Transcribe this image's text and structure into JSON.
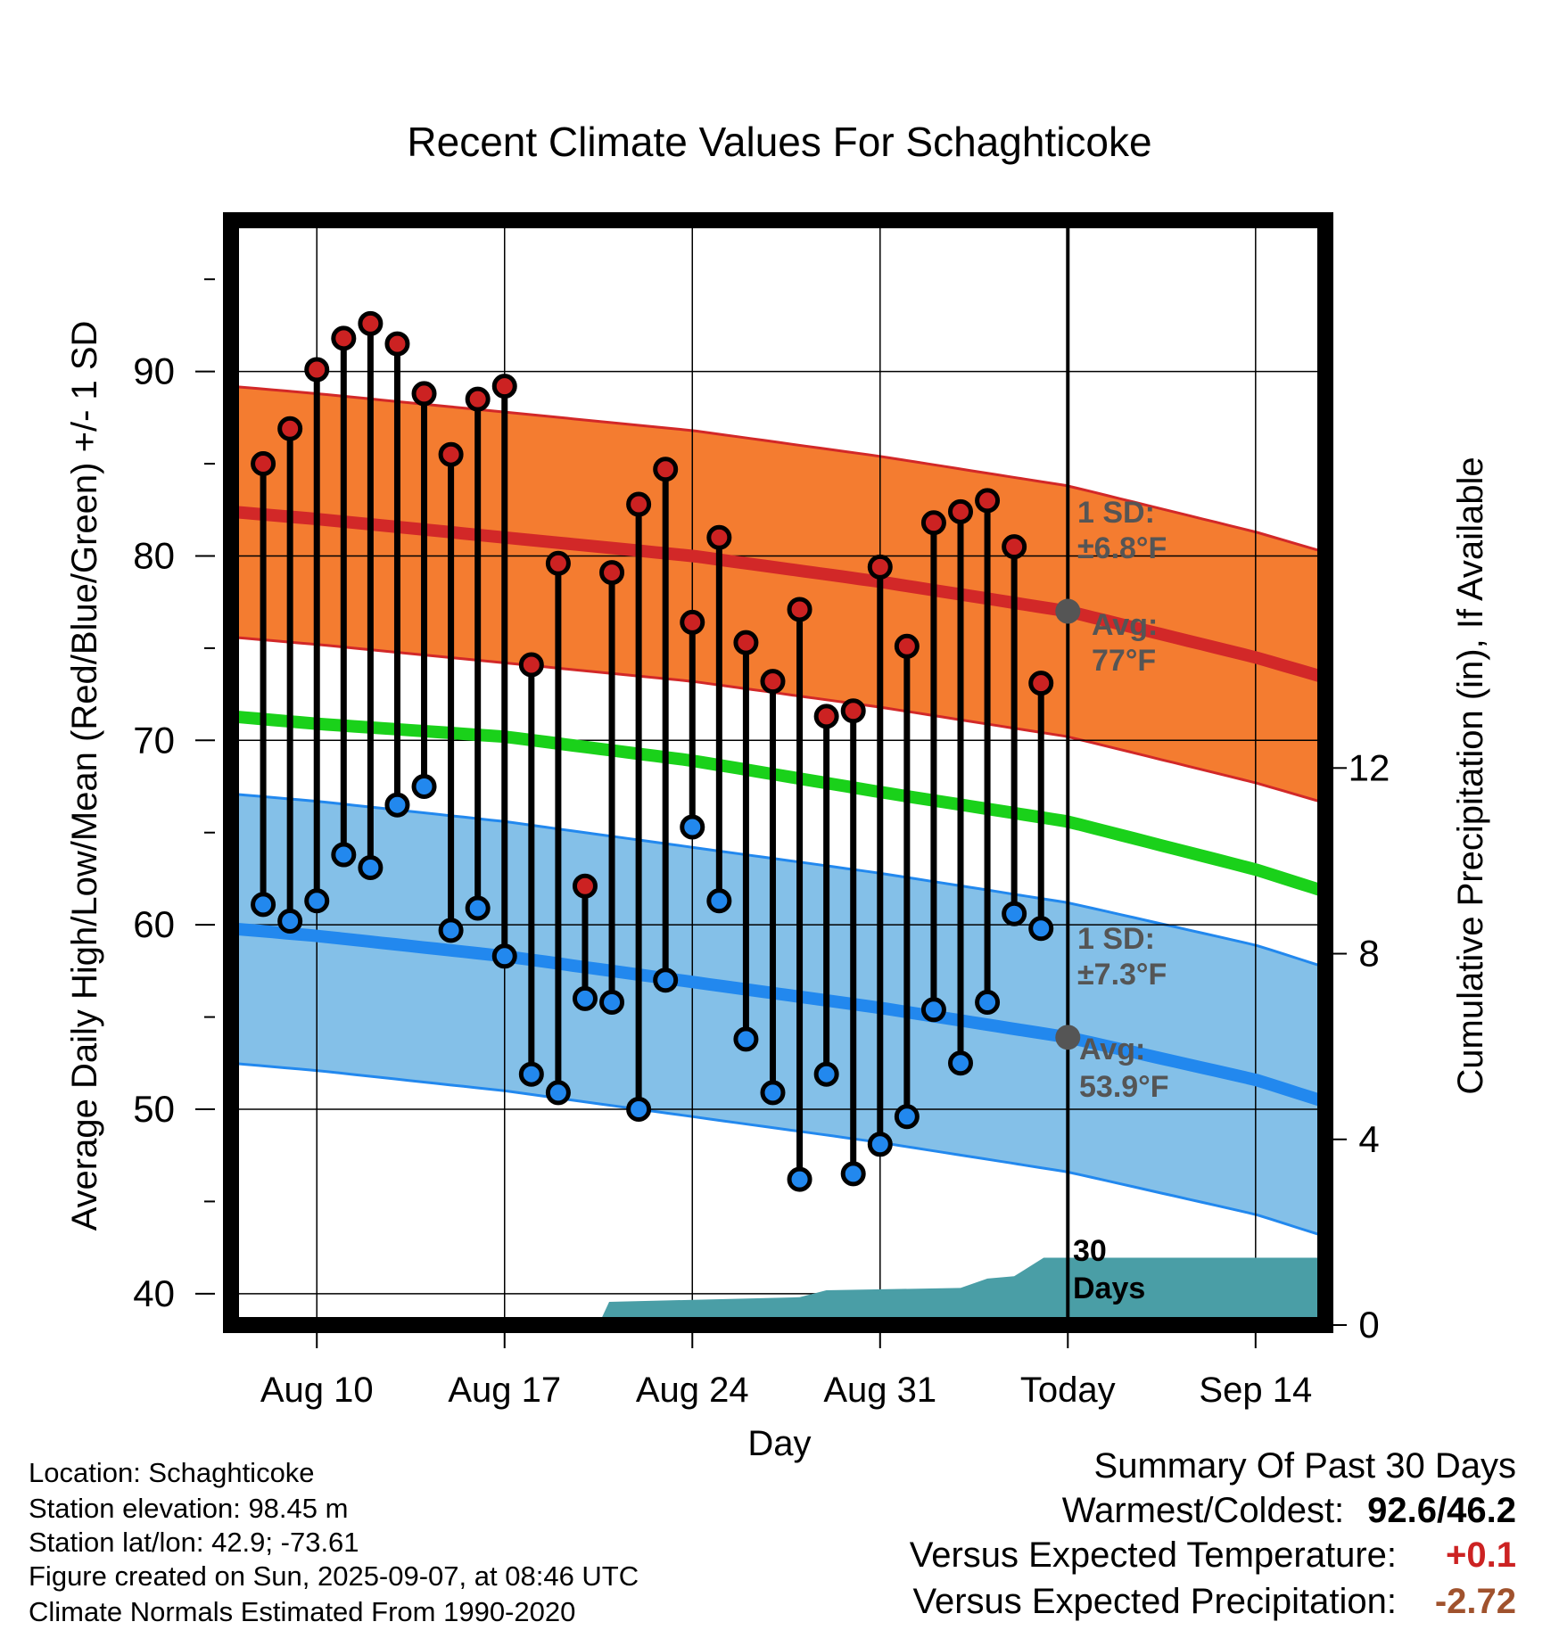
{
  "chart_data": {
    "type": "line",
    "title": "Recent Climate Values For Schaghticoke",
    "xlabel": "Day",
    "ylabel": "Average Daily High/Low/Mean (Red/Blue/Green) +/- 1 SD",
    "y2label": "Cumulative Precipitation (in), If Available",
    "ylim": [
      38.3,
      98.2
    ],
    "y_ticks": [
      40,
      50,
      60,
      70,
      80,
      90
    ],
    "y2lim": [
      0,
      23.8
    ],
    "y2_ticks": [
      0,
      4,
      8,
      12
    ],
    "x_ticks": [
      {
        "day": 10,
        "label": "Aug 10"
      },
      {
        "day": 17,
        "label": "Aug 17"
      },
      {
        "day": 24,
        "label": "Aug 24"
      },
      {
        "day": 31,
        "label": "Aug 31"
      },
      {
        "day": 38,
        "label": "Today"
      },
      {
        "day": 45,
        "label": "Sep 14"
      }
    ],
    "xlim": [
      6.8,
      47.6
    ],
    "grid": true,
    "today_day": 38,
    "observed": {
      "days": [
        8,
        9,
        10,
        11,
        12,
        13,
        14,
        15,
        16,
        17,
        18,
        19,
        20,
        21,
        22,
        23,
        24,
        25,
        26,
        27,
        28,
        29,
        30,
        31,
        32,
        33,
        34,
        35,
        36,
        37
      ],
      "highs": [
        85.0,
        86.9,
        90.1,
        91.8,
        92.6,
        91.5,
        88.8,
        85.5,
        88.5,
        89.2,
        74.1,
        79.6,
        62.1,
        79.1,
        82.8,
        84.7,
        76.4,
        81.0,
        75.3,
        73.2,
        77.1,
        71.3,
        71.6,
        79.4,
        75.1,
        81.8,
        82.4,
        83.0,
        80.5,
        73.1
      ],
      "lows": [
        61.1,
        60.2,
        61.3,
        63.8,
        63.1,
        66.5,
        67.5,
        59.7,
        60.9,
        58.3,
        51.9,
        50.9,
        56.0,
        55.8,
        50.0,
        57.0,
        65.3,
        61.3,
        53.8,
        50.9,
        46.2,
        51.9,
        46.5,
        48.1,
        49.6,
        55.4,
        52.5,
        55.8,
        60.6,
        59.8
      ],
      "high_color": "#cc2222",
      "low_color": "#2288ee"
    },
    "normals": {
      "days": [
        6.8,
        10,
        17,
        24,
        31,
        38,
        45,
        47.6
      ],
      "high_avg": [
        82.4,
        82.0,
        81.0,
        80.0,
        78.6,
        77.0,
        74.5,
        73.4
      ],
      "high_sd": 6.8,
      "low_avg": [
        59.8,
        59.4,
        58.3,
        56.9,
        55.5,
        53.9,
        51.6,
        50.4
      ],
      "low_sd": 7.3,
      "mean": [
        71.3,
        70.9,
        70.2,
        68.9,
        67.2,
        65.6,
        63.0,
        61.8
      ],
      "high_band_color": "#f47c30",
      "high_line_color": "#d22828",
      "low_band_color": "#84c0e8",
      "low_line_color": "#2288ee",
      "mean_color": "#1ad11a"
    },
    "precip": {
      "days": [
        6.8,
        20.5,
        20.9,
        28,
        29,
        34,
        35,
        36,
        37.1,
        38,
        47.6
      ],
      "values": [
        0,
        0,
        0.5,
        0.6,
        0.75,
        0.8,
        1.0,
        1.05,
        1.45,
        1.45,
        1.45
      ],
      "color": "#4a9ea6"
    },
    "annotations": {
      "high_sd": "1 SD:",
      "high_sd_val": "±6.8°F",
      "high_avg_label": "Avg:",
      "high_avg_val": "77°F",
      "high_today": 77.0,
      "low_sd": "1 SD:",
      "low_sd_val": "±7.3°F",
      "low_avg_label": "Avg:",
      "low_avg_val": "53.9°F",
      "low_today": 53.9,
      "days_num": "30",
      "days_word": "Days"
    }
  },
  "info": {
    "location": "Location: Schaghticoke",
    "elevation": "Station elevation: 98.45 m",
    "latlon": "Station lat/lon: 42.9; -73.61",
    "created": "Figure created on Sun, 2025-09-07, at 08:46 UTC",
    "normals": "Climate Normals Estimated From 1990-2020"
  },
  "summary": {
    "title": "Summary Of Past 30 Days",
    "warm_cold_label": "Warmest/Coldest:",
    "warm_cold_value": "92.6/46.2",
    "temp_label": "Versus Expected Temperature:",
    "temp_value": "+0.1",
    "temp_color": "#cc2222",
    "precip_label": "Versus Expected Precipitation:",
    "precip_value": "-2.72",
    "precip_color": "#a0522d"
  }
}
